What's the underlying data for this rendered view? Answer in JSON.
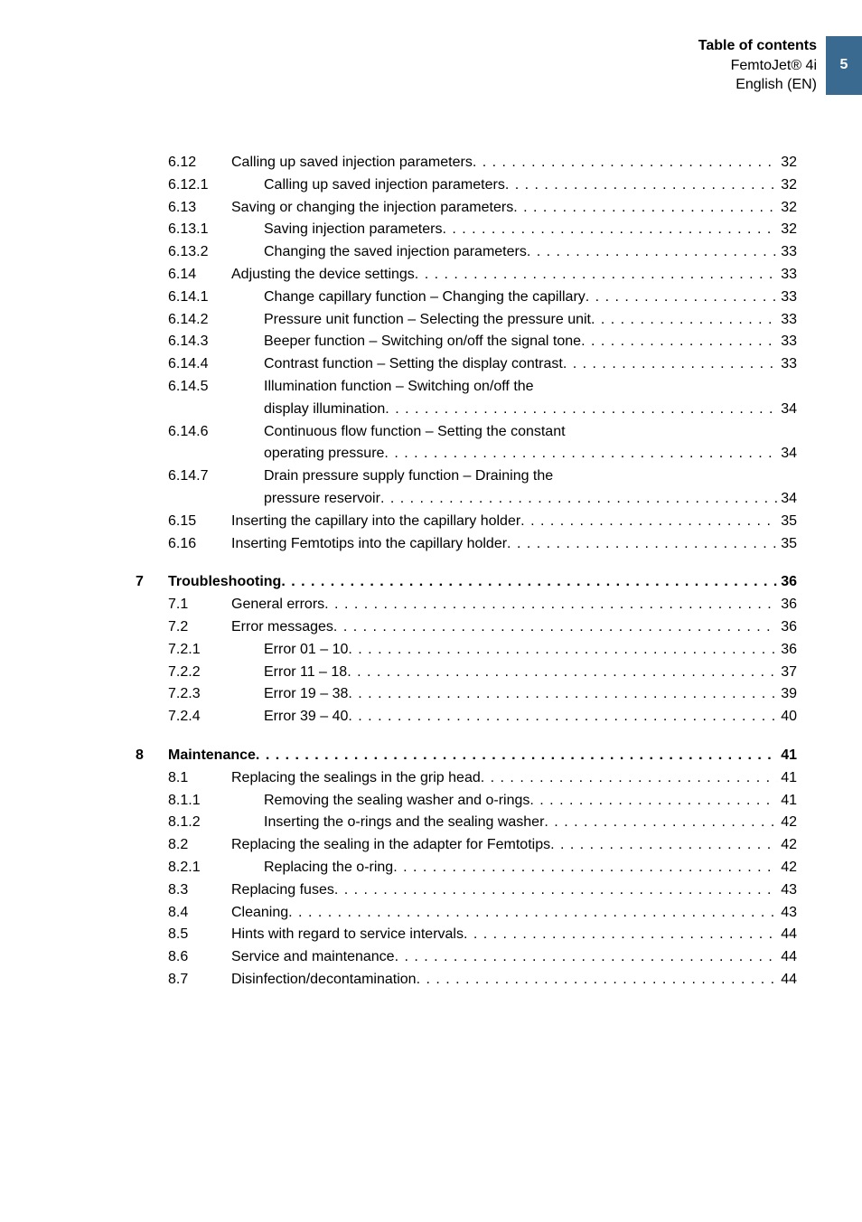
{
  "header": {
    "title": "Table of contents",
    "product": "FemtoJet® 4i",
    "lang": "English (EN)",
    "page": "5"
  },
  "toc": [
    {
      "lvl": 2,
      "num": "6.12",
      "label": "Calling up saved injection parameters",
      "pg": "32"
    },
    {
      "lvl": 3,
      "num": "6.12.1",
      "label": "Calling up saved injection parameters",
      "pg": "32"
    },
    {
      "lvl": 2,
      "num": "6.13",
      "label": "Saving or changing the injection parameters",
      "pg": "32"
    },
    {
      "lvl": 3,
      "num": "6.13.1",
      "label": "Saving injection parameters",
      "pg": "32"
    },
    {
      "lvl": 3,
      "num": "6.13.2",
      "label": "Changing the saved injection parameters",
      "pg": "33"
    },
    {
      "lvl": 2,
      "num": "6.14",
      "label": "Adjusting the device settings",
      "pg": "33"
    },
    {
      "lvl": 3,
      "num": "6.14.1",
      "label": "Change capillary function – Changing the capillary",
      "pg": "33"
    },
    {
      "lvl": 3,
      "num": "6.14.2",
      "label": "Pressure unit function – Selecting the pressure unit",
      "pg": "33"
    },
    {
      "lvl": 3,
      "num": "6.14.3",
      "label": "Beeper function – Switching on/off the signal tone",
      "pg": "33"
    },
    {
      "lvl": 3,
      "num": "6.14.4",
      "label": "Contrast function – Setting the display contrast",
      "pg": "33"
    },
    {
      "lvl": 3,
      "num": "6.14.5",
      "label": "Illumination function – Switching on/off the",
      "cont": "display illumination",
      "pg": "34"
    },
    {
      "lvl": 3,
      "num": "6.14.6",
      "label": "Continuous flow function – Setting the constant",
      "cont": "operating pressure",
      "pg": "34"
    },
    {
      "lvl": 3,
      "num": "6.14.7",
      "label": "Drain pressure supply function – Draining the",
      "cont": "pressure reservoir",
      "pg": "34"
    },
    {
      "lvl": 2,
      "num": "6.15",
      "label": "Inserting the capillary into the capillary holder",
      "pg": "35"
    },
    {
      "lvl": 2,
      "num": "6.16",
      "label": "Inserting Femtotips into the capillary holder",
      "pg": "35"
    },
    {
      "gap": true
    },
    {
      "lvl": 1,
      "num": "7",
      "label": "Troubleshooting",
      "pg": "36"
    },
    {
      "lvl": 2,
      "num": "7.1",
      "label": "General errors",
      "pg": "36"
    },
    {
      "lvl": 2,
      "num": "7.2",
      "label": "Error messages",
      "pg": "36"
    },
    {
      "lvl": 3,
      "num": "7.2.1",
      "label": "Error 01 – 10",
      "pg": "36"
    },
    {
      "lvl": 3,
      "num": "7.2.2",
      "label": "Error 11 – 18",
      "pg": "37"
    },
    {
      "lvl": 3,
      "num": "7.2.3",
      "label": "Error 19 – 38",
      "pg": "39"
    },
    {
      "lvl": 3,
      "num": "7.2.4",
      "label": "Error 39 – 40",
      "pg": "40"
    },
    {
      "gap": true
    },
    {
      "lvl": 1,
      "num": "8",
      "label": "Maintenance",
      "pg": "41"
    },
    {
      "lvl": 2,
      "num": "8.1",
      "label": "Replacing the sealings in the grip head",
      "pg": "41"
    },
    {
      "lvl": 3,
      "num": "8.1.1",
      "label": "Removing the sealing washer and o-rings",
      "pg": "41"
    },
    {
      "lvl": 3,
      "num": "8.1.2",
      "label": "Inserting the o-rings and the sealing washer",
      "pg": "42"
    },
    {
      "lvl": 2,
      "num": "8.2",
      "label": "Replacing the sealing in the adapter for Femtotips",
      "pg": "42"
    },
    {
      "lvl": 3,
      "num": "8.2.1",
      "label": "Replacing the o-ring",
      "pg": "42"
    },
    {
      "lvl": 2,
      "num": "8.3",
      "label": "Replacing fuses",
      "pg": "43"
    },
    {
      "lvl": 2,
      "num": "8.4",
      "label": "Cleaning",
      "pg": "43"
    },
    {
      "lvl": 2,
      "num": "8.5",
      "label": "Hints with regard to service intervals",
      "pg": "44"
    },
    {
      "lvl": 2,
      "num": "8.6",
      "label": "Service and maintenance",
      "pg": "44"
    },
    {
      "lvl": 2,
      "num": "8.7",
      "label": "Disinfection/decontamination",
      "pg": "44"
    }
  ]
}
